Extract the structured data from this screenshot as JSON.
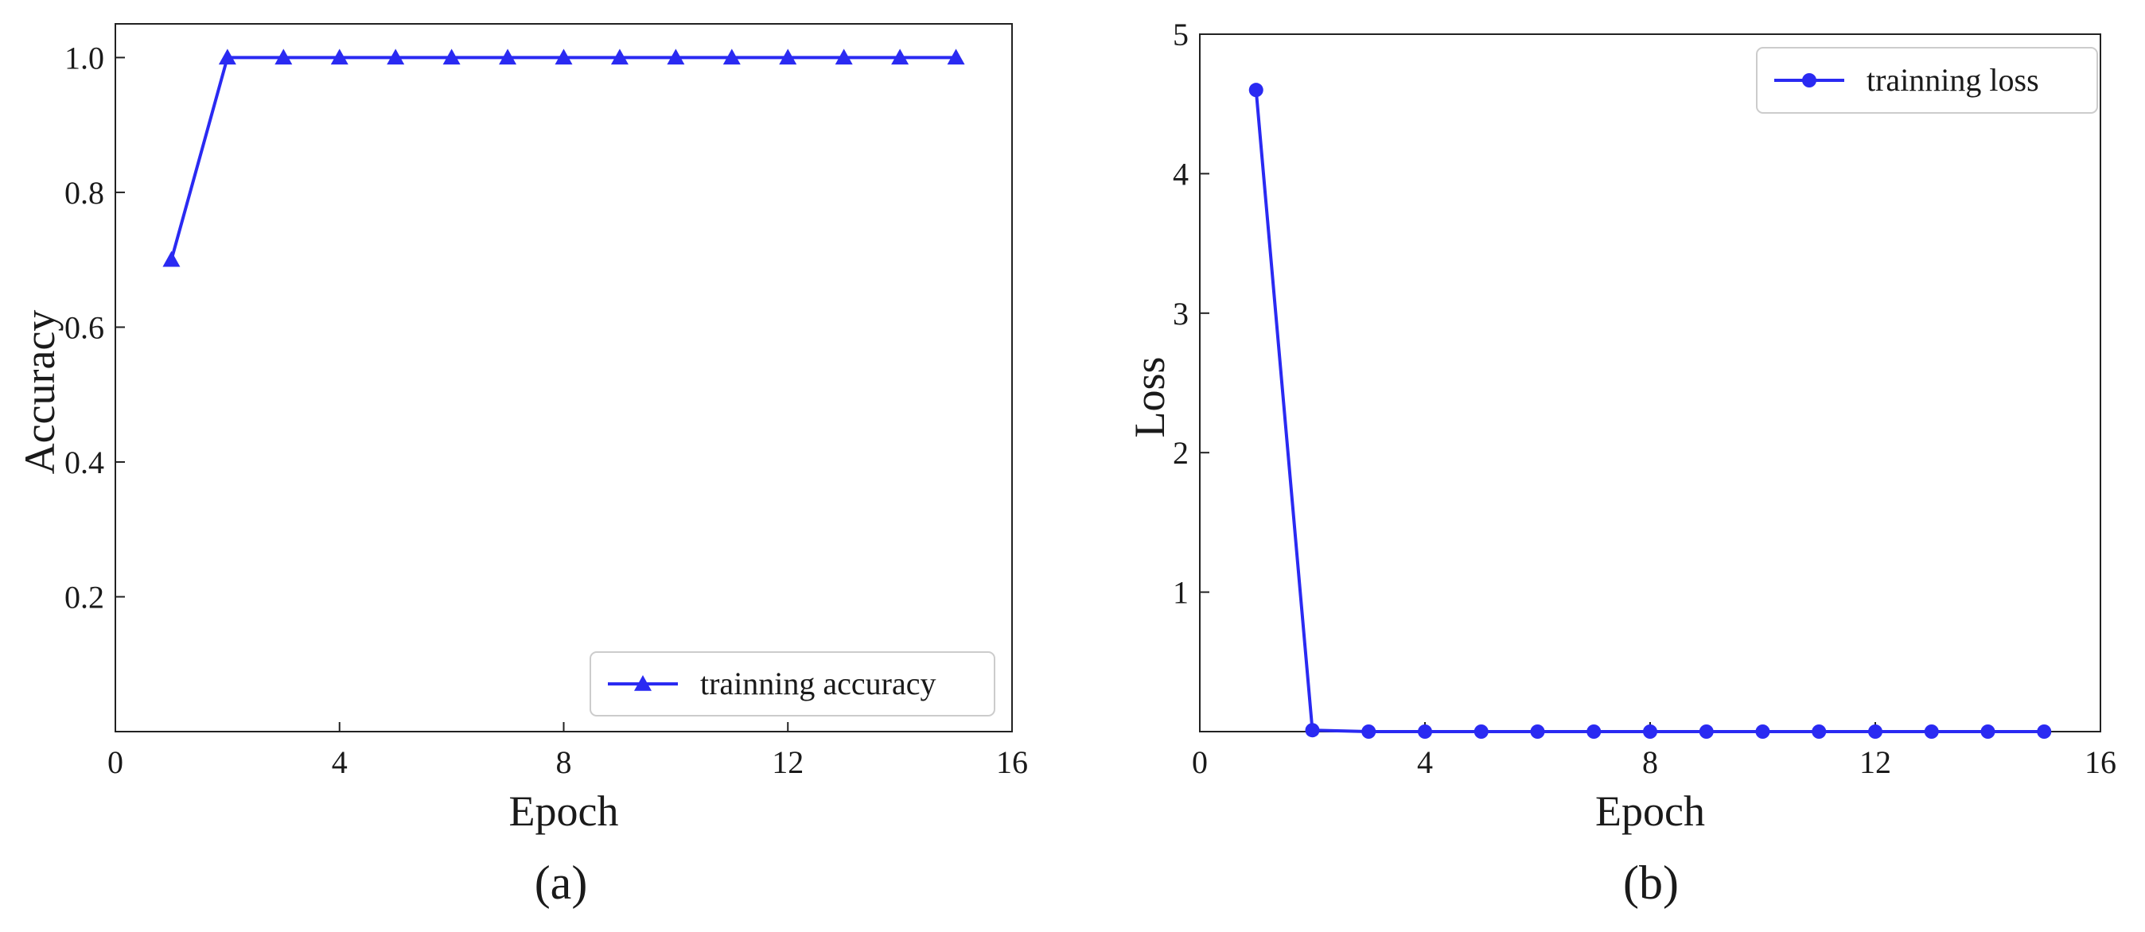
{
  "chart_data": [
    {
      "type": "line",
      "caption": "(a)",
      "xlabel": "Epoch",
      "ylabel": "Accuracy",
      "xlim": [
        0,
        16
      ],
      "ylim": [
        0.0,
        1.05
      ],
      "xticks": [
        0,
        4,
        8,
        12,
        16
      ],
      "yticks": [
        0.2,
        0.4,
        0.6,
        0.8,
        1.0
      ],
      "xtick_labels": [
        "0",
        "4",
        "8",
        "12",
        "16"
      ],
      "ytick_labels": [
        "0.2",
        "0.4",
        "0.6",
        "0.8",
        "1.0"
      ],
      "grid": false,
      "legend_position": "lower-right",
      "series": [
        {
          "name": "trainning accuracy",
          "color": "#2a2af2",
          "marker": "triangle",
          "x": [
            1,
            2,
            3,
            4,
            5,
            6,
            7,
            8,
            9,
            10,
            11,
            12,
            13,
            14,
            15
          ],
          "y": [
            0.7,
            1.0,
            1.0,
            1.0,
            1.0,
            1.0,
            1.0,
            1.0,
            1.0,
            1.0,
            1.0,
            1.0,
            1.0,
            1.0,
            1.0
          ]
        }
      ]
    },
    {
      "type": "line",
      "caption": "(b)",
      "xlabel": "Epoch",
      "ylabel": "Loss",
      "xlim": [
        0,
        16
      ],
      "ylim": [
        0,
        5
      ],
      "xticks": [
        0,
        4,
        8,
        12,
        16
      ],
      "yticks": [
        1,
        2,
        3,
        4,
        5
      ],
      "xtick_labels": [
        "0",
        "4",
        "8",
        "12",
        "16"
      ],
      "ytick_labels": [
        "1",
        "2",
        "3",
        "4",
        "5"
      ],
      "grid": false,
      "legend_position": "upper-right",
      "series": [
        {
          "name": "trainning loss",
          "color": "#2a2af2",
          "marker": "circle",
          "x": [
            1,
            2,
            3,
            4,
            5,
            6,
            7,
            8,
            9,
            10,
            11,
            12,
            13,
            14,
            15
          ],
          "y": [
            4.6,
            0.01,
            0.0,
            0.0,
            0.0,
            0.0,
            0.0,
            0.0,
            0.0,
            0.0,
            0.0,
            0.0,
            0.0,
            0.0,
            0.0
          ]
        }
      ]
    }
  ]
}
